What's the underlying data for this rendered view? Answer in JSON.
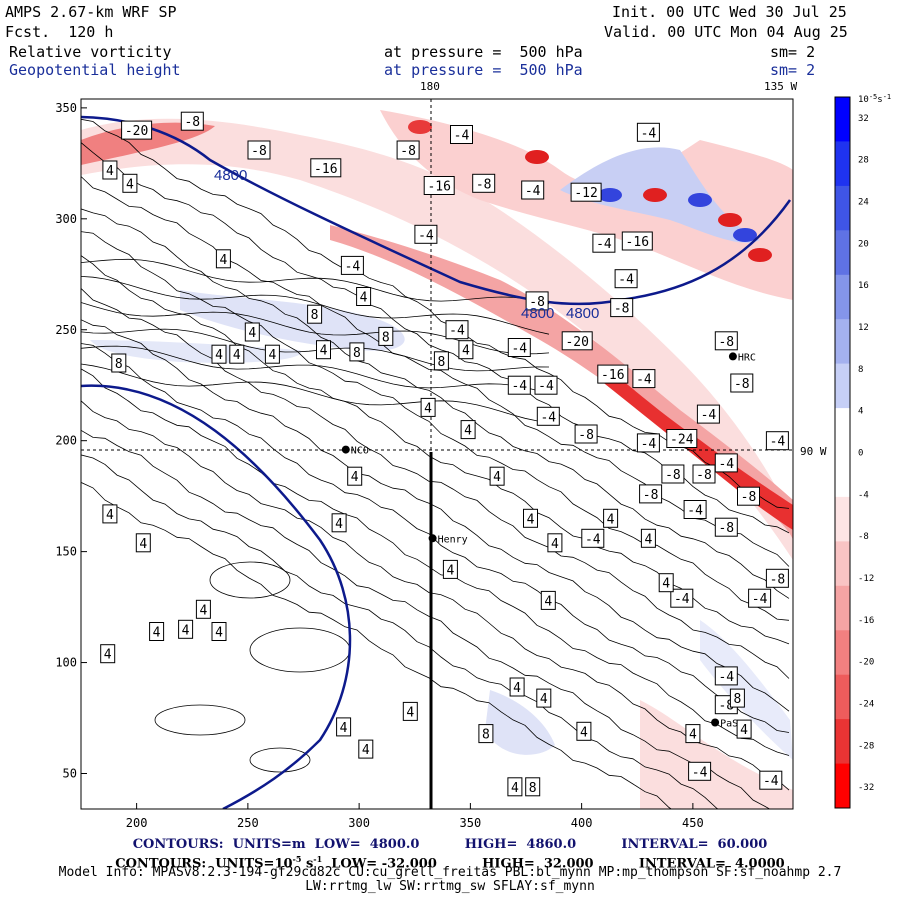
{
  "header": {
    "model": "AMPS 2.67-km WRF SP",
    "forecast": "Fcst.  120 h",
    "init": "Init. 00 UTC Wed 30 Jul 25",
    "valid": "Valid. 00 UTC Mon 04 Aug 25",
    "field1": "Relative vorticity",
    "field2": "Geopotential height",
    "level1": "at pressure =  500 hPa",
    "level2": "at pressure =  500 hPa",
    "sm1": "sm= 2",
    "sm2": "sm= 2"
  },
  "map": {
    "lon_top_center": "180",
    "lon_top_right": "135 W",
    "lon_right": "90 W",
    "x_ticks": [
      "200",
      "250",
      "300",
      "350",
      "400",
      "450"
    ],
    "y_ticks": [
      "350",
      "300",
      "250",
      "200",
      "150",
      "100",
      "50"
    ],
    "stations": [
      {
        "name": "NCO",
        "x": 294,
        "y": 196
      },
      {
        "name": "Henry",
        "x": 333,
        "y": 156
      },
      {
        "name": "HRC",
        "x": 468,
        "y": 238
      },
      {
        "name": "PaS",
        "x": 460,
        "y": 73
      }
    ],
    "height_contour_labels": [
      "4800",
      "4800",
      "4800"
    ],
    "vorticity_labels": [
      {
        "t": "-20",
        "x": 200,
        "y": 340
      },
      {
        "t": "-8",
        "x": 225,
        "y": 344
      },
      {
        "t": "-8",
        "x": 255,
        "y": 331
      },
      {
        "t": "-16",
        "x": 285,
        "y": 323
      },
      {
        "t": "-8",
        "x": 322,
        "y": 331
      },
      {
        "t": "-4",
        "x": 346,
        "y": 338
      },
      {
        "t": "-16",
        "x": 336,
        "y": 315
      },
      {
        "t": "-8",
        "x": 356,
        "y": 316
      },
      {
        "t": "-4",
        "x": 378,
        "y": 313
      },
      {
        "t": "-12",
        "x": 402,
        "y": 312
      },
      {
        "t": "-4",
        "x": 430,
        "y": 339
      },
      {
        "t": "-4",
        "x": 330,
        "y": 293
      },
      {
        "t": "-4",
        "x": 410,
        "y": 289
      },
      {
        "t": "-16",
        "x": 425,
        "y": 290
      },
      {
        "t": "-4",
        "x": 420,
        "y": 273
      },
      {
        "t": "-4",
        "x": 297,
        "y": 279
      },
      {
        "t": "-8",
        "x": 380,
        "y": 263
      },
      {
        "t": "-8",
        "x": 418,
        "y": 260
      },
      {
        "t": "-4",
        "x": 344,
        "y": 250
      },
      {
        "t": "-20",
        "x": 398,
        "y": 245
      },
      {
        "t": "-4",
        "x": 372,
        "y": 242
      },
      {
        "t": "-8",
        "x": 465,
        "y": 245
      },
      {
        "t": "-16",
        "x": 414,
        "y": 230
      },
      {
        "t": "-4",
        "x": 428,
        "y": 228
      },
      {
        "t": "-8",
        "x": 472,
        "y": 226
      },
      {
        "t": "-4",
        "x": 372,
        "y": 225
      },
      {
        "t": "-4",
        "x": 384,
        "y": 225
      },
      {
        "t": "-4",
        "x": 385,
        "y": 211
      },
      {
        "t": "-8",
        "x": 402,
        "y": 203
      },
      {
        "t": "-4",
        "x": 457,
        "y": 212
      },
      {
        "t": "-4",
        "x": 430,
        "y": 199
      },
      {
        "t": "-24",
        "x": 445,
        "y": 201
      },
      {
        "t": "-4",
        "x": 465,
        "y": 190
      },
      {
        "t": "-4",
        "x": 488,
        "y": 200
      },
      {
        "t": "-8",
        "x": 441,
        "y": 185
      },
      {
        "t": "-8",
        "x": 455,
        "y": 185
      },
      {
        "t": "-8",
        "x": 475,
        "y": 175
      },
      {
        "t": "-8",
        "x": 431,
        "y": 176
      },
      {
        "t": "-4",
        "x": 451,
        "y": 169
      },
      {
        "t": "-8",
        "x": 465,
        "y": 161
      },
      {
        "t": "-4",
        "x": 405,
        "y": 156
      },
      {
        "t": "-8",
        "x": 488,
        "y": 138
      },
      {
        "t": "-4",
        "x": 445,
        "y": 129
      },
      {
        "t": "-4",
        "x": 480,
        "y": 129
      },
      {
        "t": "-4",
        "x": 465,
        "y": 94
      },
      {
        "t": "-8",
        "x": 465,
        "y": 81
      },
      {
        "t": "-4",
        "x": 453,
        "y": 51
      },
      {
        "t": "-4",
        "x": 485,
        "y": 47
      },
      {
        "t": "4",
        "x": 188,
        "y": 322
      },
      {
        "t": "4",
        "x": 197,
        "y": 316
      },
      {
        "t": "4",
        "x": 239,
        "y": 282
      },
      {
        "t": "4",
        "x": 302,
        "y": 265
      },
      {
        "t": "4",
        "x": 252,
        "y": 249
      },
      {
        "t": "4",
        "x": 237,
        "y": 239
      },
      {
        "t": "4",
        "x": 245,
        "y": 239
      },
      {
        "t": "4",
        "x": 261,
        "y": 239
      },
      {
        "t": "4",
        "x": 284,
        "y": 241
      },
      {
        "t": "4",
        "x": 348,
        "y": 241
      },
      {
        "t": "4",
        "x": 349,
        "y": 205
      },
      {
        "t": "4",
        "x": 331,
        "y": 215
      },
      {
        "t": "4",
        "x": 298,
        "y": 184
      },
      {
        "t": "4",
        "x": 362,
        "y": 184
      },
      {
        "t": "4",
        "x": 188,
        "y": 167
      },
      {
        "t": "4",
        "x": 291,
        "y": 163
      },
      {
        "t": "4",
        "x": 203,
        "y": 154
      },
      {
        "t": "4",
        "x": 377,
        "y": 165
      },
      {
        "t": "4",
        "x": 388,
        "y": 154
      },
      {
        "t": "4",
        "x": 430,
        "y": 156
      },
      {
        "t": "4",
        "x": 438,
        "y": 136
      },
      {
        "t": "4",
        "x": 341,
        "y": 142
      },
      {
        "t": "4",
        "x": 413,
        "y": 165
      },
      {
        "t": "4",
        "x": 385,
        "y": 128
      },
      {
        "t": "4",
        "x": 230,
        "y": 124
      },
      {
        "t": "4",
        "x": 209,
        "y": 114
      },
      {
        "t": "4",
        "x": 222,
        "y": 115
      },
      {
        "t": "4",
        "x": 237,
        "y": 114
      },
      {
        "t": "4",
        "x": 187,
        "y": 104
      },
      {
        "t": "4",
        "x": 371,
        "y": 89
      },
      {
        "t": "4",
        "x": 383,
        "y": 84
      },
      {
        "t": "4",
        "x": 323,
        "y": 78
      },
      {
        "t": "4",
        "x": 293,
        "y": 71
      },
      {
        "t": "4",
        "x": 303,
        "y": 61
      },
      {
        "t": "4",
        "x": 401,
        "y": 69
      },
      {
        "t": "4",
        "x": 450,
        "y": 68
      },
      {
        "t": "4",
        "x": 473,
        "y": 70
      },
      {
        "t": "4",
        "x": 370,
        "y": 44
      },
      {
        "t": "8",
        "x": 280,
        "y": 257
      },
      {
        "t": "8",
        "x": 312,
        "y": 247
      },
      {
        "t": "8",
        "x": 299,
        "y": 240
      },
      {
        "t": "8",
        "x": 192,
        "y": 235
      },
      {
        "t": "8",
        "x": 337,
        "y": 236
      },
      {
        "t": "8",
        "x": 357,
        "y": 68
      },
      {
        "t": "8",
        "x": 378,
        "y": 44
      },
      {
        "t": "8",
        "x": 470,
        "y": 84
      }
    ]
  },
  "colorbar": {
    "unit": "10",
    "unit_exp": "-5",
    "unit_tail": "s",
    "unit_tail_exp": "-1",
    "labels": [
      "32",
      "28",
      "24",
      "20",
      "16",
      "12",
      "8",
      "4",
      "0",
      "-4",
      "-8",
      "-12",
      "-16",
      "-20",
      "-24",
      "-28",
      "-32"
    ],
    "colors": {
      "blue_max": "#0000ff",
      "blue_mid": "#4a5fe0",
      "blue_low": "#b8c2f4",
      "red_low": "#fbd6d6",
      "red_mid": "#f08a8a",
      "red_max": "#ff0000"
    }
  },
  "footer": {
    "line1": "CONTOURS:  UNITS=m  LOW=  4800.0          HIGH=  4860.0          INTERVAL=  60.000",
    "line2": "CONTOURS:  UNITS=10",
    "line2_exp": "-5",
    "line2_mid": " s",
    "line2_exp2": "-1",
    "line2_rest": "  LOW= -32.000          HIGH=  32.000          INTERVAL=  4.0000",
    "line3": "Model Info: MPASv8.2.3-194-gf29cd82c CU:cu_grell_freitas PBL:bl_mynn MP:mp_thompson SF:sf_noahmp 2.7",
    "line4": "LW:rrtmg_lw SW:rrtmg_sw SFLAY:sf_mynn"
  }
}
